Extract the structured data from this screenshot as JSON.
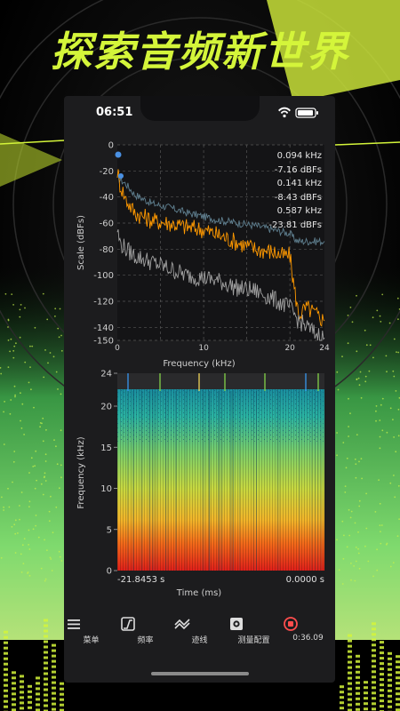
{
  "headline": "探索音频新世界",
  "status": {
    "time": "06:51"
  },
  "colors": {
    "accent": "#d4f53a",
    "orange": "#ff9900",
    "grey_trace": "#a0a0a0",
    "slate_trace": "#5f7f8f",
    "marker": "#4a90e2"
  },
  "spectrum": {
    "readouts": [
      {
        "freq": "0.094 kHz",
        "level": "-7.16 dBFs"
      },
      {
        "freq": "0.141 kHz",
        "level": "-8.43 dBFs"
      },
      {
        "freq": "0.587 kHz",
        "level": "-23.81 dBFs"
      }
    ]
  },
  "spectrogram": {
    "start_label": "-21.8453 s",
    "end_label": "0.0000 s"
  },
  "chart_data": [
    {
      "type": "line",
      "xlabel": "Frequency (kHz)",
      "ylabel": "Scale (dBFs)",
      "xlim": [
        0,
        24
      ],
      "ylim": [
        -150,
        0
      ],
      "x_ticks": [
        0,
        10,
        20,
        24
      ],
      "y_ticks": [
        0,
        -20,
        -40,
        -60,
        -80,
        -100,
        -120,
        -140,
        -150
      ],
      "grid": true,
      "series": [
        {
          "color": "slate",
          "x": [
            0,
            1,
            2,
            4,
            6,
            8,
            10,
            12,
            14,
            16,
            18,
            20,
            20.5,
            21,
            22,
            24
          ],
          "y": [
            -25,
            -30,
            -38,
            -45,
            -48,
            -52,
            -55,
            -58,
            -60,
            -62,
            -65,
            -68,
            -72,
            -74,
            -74,
            -74
          ]
        },
        {
          "color": "orange",
          "x": [
            0,
            0.3,
            1,
            2,
            4,
            6,
            8,
            10,
            12,
            14,
            16,
            18,
            19,
            20,
            20.5,
            21,
            22,
            23,
            24
          ],
          "y": [
            -20,
            -30,
            -42,
            -52,
            -58,
            -60,
            -63,
            -65,
            -70,
            -75,
            -80,
            -82,
            -85,
            -85,
            -110,
            -130,
            -125,
            -130,
            -135
          ]
        },
        {
          "color": "grey",
          "x": [
            0,
            0.3,
            1,
            2,
            4,
            6,
            8,
            10,
            12,
            14,
            16,
            18,
            20,
            21,
            22,
            23,
            24
          ],
          "y": [
            -65,
            -75,
            -80,
            -85,
            -90,
            -95,
            -100,
            -102,
            -105,
            -110,
            -112,
            -118,
            -125,
            -135,
            -140,
            -145,
            -148
          ]
        }
      ]
    },
    {
      "type": "heatmap",
      "xlabel": "Time (ms)",
      "ylabel": "Frequency (kHz)",
      "ylim": [
        0,
        24
      ],
      "y_ticks": [
        0,
        5,
        10,
        15,
        20,
        24
      ]
    }
  ],
  "tabs": [
    {
      "label": "菜单",
      "icon": "menu-icon"
    },
    {
      "label": "频率",
      "icon": "frequency-icon"
    },
    {
      "label": "迹线",
      "icon": "trace-icon"
    },
    {
      "label": "测量配置",
      "icon": "gear-icon"
    },
    {
      "label": "0:36.09",
      "icon": "record-stop-icon"
    }
  ]
}
